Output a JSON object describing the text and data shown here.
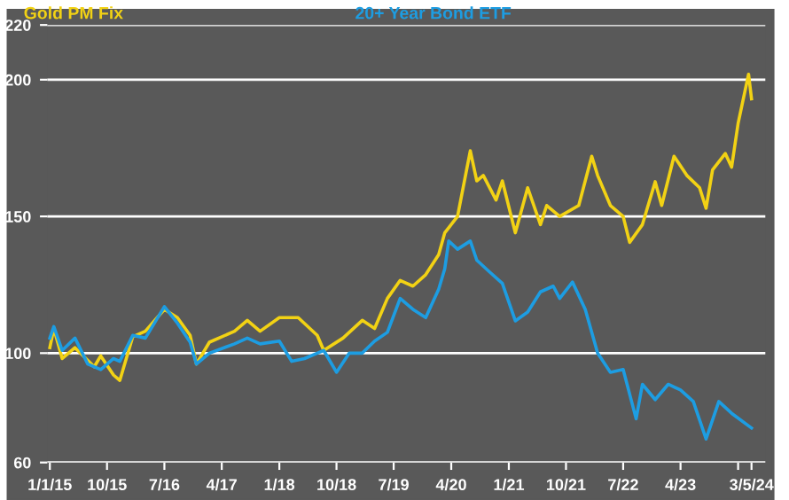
{
  "chart_data": {
    "type": "line",
    "xlim": [
      "2014-12-20",
      "2024-05-10"
    ],
    "ylim": [
      60,
      220
    ],
    "yticks": [
      60,
      100,
      150,
      200,
      220
    ],
    "grid": "y",
    "legend": "top",
    "line_style": "solid",
    "marker": "none",
    "xticks": [
      {
        "value": "2015-01-01",
        "label": "1/1/15"
      },
      {
        "value": "2015-10-01",
        "label": "10/15"
      },
      {
        "value": "2016-07-01",
        "label": "7/16"
      },
      {
        "value": "2017-04-01",
        "label": "4/17"
      },
      {
        "value": "2018-01-01",
        "label": "1/18"
      },
      {
        "value": "2018-10-01",
        "label": "10/18"
      },
      {
        "value": "2019-07-01",
        "label": "7/19"
      },
      {
        "value": "2020-04-01",
        "label": "4/20"
      },
      {
        "value": "2021-01-01",
        "label": "1/21"
      },
      {
        "value": "2021-10-01",
        "label": "10/21"
      },
      {
        "value": "2022-07-01",
        "label": "7/22"
      },
      {
        "value": "2023-04-01",
        "label": "4/23"
      },
      {
        "value": "2024-01-01",
        "label": null
      },
      {
        "value": "2024-03-05",
        "label": "3/5/24"
      }
    ],
    "series": [
      {
        "name": "Gold PM Fix",
        "color": "#f2d214",
        "x": [
          "2015-01-01",
          "2015-01-20",
          "2015-03",
          "2015-05",
          "2015-08",
          "2015-09",
          "2015-11",
          "2015-12",
          "2016-02",
          "2016-04",
          "2016-07",
          "2016-09",
          "2016-11",
          "2016-12",
          "2017-02",
          "2017-06",
          "2017-08",
          "2017-10",
          "2018-01",
          "2018-04",
          "2018-07",
          "2018-08",
          "2018-11",
          "2019-02",
          "2019-04",
          "2019-06",
          "2019-08",
          "2019-10",
          "2019-12",
          "2020-02",
          "2020-03",
          "2020-05",
          "2020-07",
          "2020-08",
          "2020-09",
          "2020-11",
          "2020-12",
          "2021-02",
          "2021-04",
          "2021-06",
          "2021-07",
          "2021-09",
          "2021-12",
          "2022-02",
          "2022-03",
          "2022-05",
          "2022-07",
          "2022-08",
          "2022-10",
          "2022-12",
          "2023-01",
          "2023-03",
          "2023-05",
          "2023-07",
          "2023-08",
          "2023-09",
          "2023-11",
          "2023-12",
          "2024-01",
          "2024-02-20",
          "2024-03-05"
        ],
        "values": [
          102,
          109,
          98,
          102,
          95,
          99,
          92,
          90,
          106,
          108,
          116,
          113,
          106.5,
          96,
          104,
          108,
          112,
          108,
          113,
          113,
          106.5,
          101,
          105.5,
          112,
          109,
          120,
          126.6,
          124.5,
          128.7,
          136,
          144,
          150,
          174,
          163,
          165,
          156,
          163,
          144,
          160.5,
          147,
          154,
          150,
          154,
          172,
          165,
          154,
          150,
          140.5,
          147,
          162.7,
          154,
          172,
          165,
          160.5,
          153,
          167,
          173,
          168,
          184,
          202,
          193
        ]
      },
      {
        "name": "20+ Year Bond ETF",
        "color": "#1d9de2",
        "x": [
          "2015-01-01",
          "2015-01-20",
          "2015-03",
          "2015-05",
          "2015-07",
          "2015-09",
          "2015-11",
          "2015-12",
          "2016-02",
          "2016-04",
          "2016-07",
          "2016-09",
          "2016-11",
          "2016-12",
          "2017-02",
          "2017-06",
          "2017-08",
          "2017-10",
          "2018-01",
          "2018-03",
          "2018-05",
          "2018-07",
          "2018-08",
          "2018-10",
          "2018-12",
          "2019-02",
          "2019-04",
          "2019-06",
          "2019-08",
          "2019-10",
          "2019-12",
          "2020-02",
          "2020-03-01",
          "2020-03-20",
          "2020-05",
          "2020-07",
          "2020-08",
          "2020-10",
          "2020-12",
          "2021-02",
          "2021-04",
          "2021-06",
          "2021-08",
          "2021-09",
          "2021-11",
          "2022-01",
          "2022-03",
          "2022-05",
          "2022-07",
          "2022-09",
          "2022-10",
          "2022-12",
          "2023-02",
          "2023-04",
          "2023-06",
          "2023-08",
          "2023-10",
          "2023-12",
          "2024-03-05"
        ],
        "values": [
          105.5,
          109.7,
          101,
          105.5,
          96,
          94,
          98,
          97,
          106.5,
          105.5,
          117,
          111,
          104,
          96,
          100,
          103.4,
          105.5,
          103.4,
          104.4,
          97,
          98,
          100,
          101,
          93,
          100,
          100,
          104.4,
          107.6,
          120,
          116,
          113,
          123.4,
          130.8,
          141,
          138,
          141,
          134,
          129.7,
          125.5,
          111.8,
          115,
          122.4,
          124.5,
          120,
          126,
          116,
          100,
          93,
          94,
          76,
          88.6,
          83,
          88.6,
          86.5,
          82.3,
          68.6,
          82.3,
          78,
          72.6
        ]
      }
    ]
  }
}
